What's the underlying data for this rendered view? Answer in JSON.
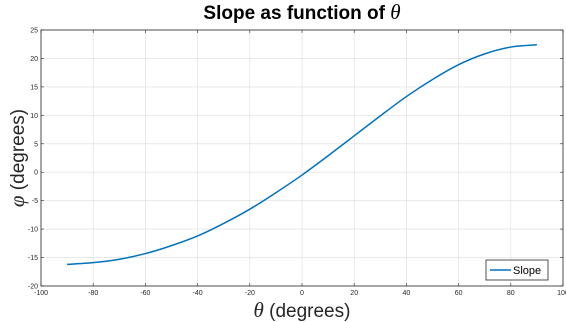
{
  "chart_data": {
    "type": "line",
    "title_prefix": "Slope as function of ",
    "title_symbol": "θ",
    "xlabel_symbol": "θ",
    "xlabel_text": " (degrees)",
    "ylabel_symbol": "φ",
    "ylabel_text": " (degrees)",
    "xlim": [
      -100,
      100
    ],
    "ylim": [
      -20,
      25
    ],
    "xticks": [
      -100,
      -80,
      -60,
      -40,
      -20,
      0,
      20,
      40,
      60,
      80,
      100
    ],
    "yticks": [
      -20,
      -15,
      -10,
      -5,
      0,
      5,
      10,
      15,
      20,
      25
    ],
    "grid": true,
    "legend_position": "bottom-right",
    "series": [
      {
        "name": "Slope",
        "color": "#0072BD",
        "x": [
          -90,
          -80,
          -70,
          -60,
          -50,
          -40,
          -30,
          -20,
          -10,
          0,
          10,
          20,
          30,
          40,
          50,
          60,
          70,
          80,
          90
        ],
        "y": [
          -16.2,
          -15.9,
          -15.3,
          -14.3,
          -12.9,
          -11.2,
          -9.0,
          -6.5,
          -3.6,
          -0.5,
          2.9,
          6.4,
          9.9,
          13.3,
          16.3,
          18.9,
          20.8,
          22.0,
          22.4
        ]
      }
    ]
  }
}
